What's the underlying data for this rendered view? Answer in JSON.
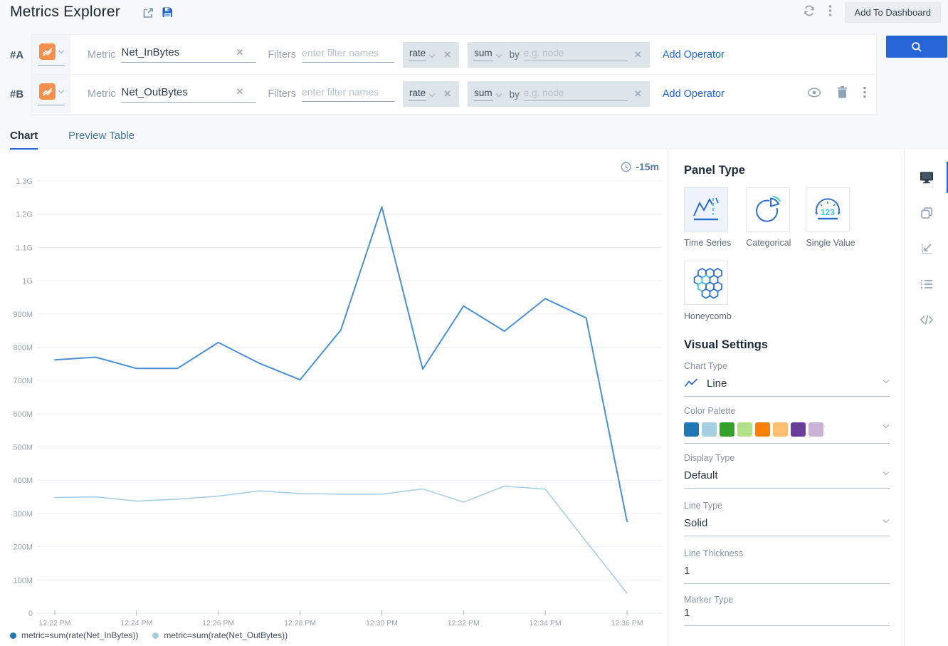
{
  "header": {
    "title": "Metrics Explorer",
    "add_to_dashboard_label": "Add To Dashboard"
  },
  "queries": {
    "labels": {
      "metric": "Metric",
      "filters": "Filters",
      "filters_placeholder": "enter filter names",
      "by": "by",
      "by_placeholder": "e.g. node",
      "add_operator": "Add Operator",
      "clear": "✕"
    },
    "rows": [
      {
        "id": "#A",
        "metric_value": "Net_InBytes",
        "operator1": "rate",
        "operator2": "sum"
      },
      {
        "id": "#B",
        "metric_value": "Net_OutBytes",
        "operator1": "rate",
        "operator2": "sum"
      }
    ]
  },
  "tabs": {
    "chart": "Chart",
    "preview_table": "Preview Table"
  },
  "chart": {
    "time_range_label": "-15m"
  },
  "chart_data": {
    "type": "line",
    "title": "",
    "xlabel": "",
    "ylabel": "",
    "x": [
      "12:22 PM",
      "12:23 PM",
      "12:24 PM",
      "12:25 PM",
      "12:26 PM",
      "12:27 PM",
      "12:28 PM",
      "12:29 PM",
      "12:30 PM",
      "12:31 PM",
      "12:32 PM",
      "12:33 PM",
      "12:34 PM",
      "12:35 PM",
      "12:36 PM"
    ],
    "x_tick_labels": [
      "12:22 PM",
      "12:24 PM",
      "12:26 PM",
      "12:28 PM",
      "12:30 PM",
      "12:32 PM",
      "12:34 PM",
      "12:36 PM"
    ],
    "y_tick_labels": [
      "1.3G",
      "1.2G",
      "1.1G",
      "1G",
      "900M",
      "800M",
      "700M",
      "600M",
      "500M",
      "400M",
      "300M",
      "200M",
      "100M",
      "0"
    ],
    "y_unit": "bytes/sec (rate)",
    "ylim_millions": [
      0,
      1300
    ],
    "grid": true,
    "legend_position": "bottom-left",
    "series": [
      {
        "name": "metric=sum(rate(Net_InBytes))",
        "color": "#4a90d5",
        "legend_color": "#1f78b4",
        "width": 2,
        "values_millions": [
          762,
          770,
          736,
          736,
          814,
          752,
          702,
          852,
          1222,
          734,
          924,
          848,
          946,
          888,
          276
        ]
      },
      {
        "name": "metric=sum(rate(Net_OutBytes))",
        "color": "#a8cfe8",
        "legend_color": "#a6cee3",
        "width": 1.6,
        "values_millions": [
          348,
          350,
          337,
          343,
          352,
          368,
          360,
          358,
          358,
          374,
          334,
          382,
          373,
          216,
          60
        ]
      }
    ]
  },
  "panel": {
    "panel_type_title": "Panel Type",
    "panel_types": [
      "Time Series",
      "Categorical",
      "Single Value",
      "Honeycomb"
    ],
    "selected_panel_type": "Time Series",
    "visual_settings_title": "Visual Settings",
    "chart_type": {
      "label": "Chart Type",
      "value": "Line"
    },
    "color_palette": {
      "label": "Color Palette",
      "swatches": [
        "#1f78b4",
        "#a6cee3",
        "#33a02c",
        "#b2df8a",
        "#ff7f00",
        "#fdbf6f",
        "#6a3d9a",
        "#cab2d6"
      ]
    },
    "display_type": {
      "label": "Display Type",
      "value": "Default"
    },
    "line_type": {
      "label": "Line Type",
      "value": "Solid"
    },
    "line_thickness": {
      "label": "Line Thickness",
      "value": "1"
    },
    "marker_type": {
      "label": "Marker Type",
      "value": "1"
    }
  },
  "colors": {
    "accent_blue": "#2565d6",
    "link_blue": "#2064d4",
    "metric_icon_orange": "#f68f4b",
    "icon_teal": "#3ec6d8",
    "icon_blue": "#2b6ed0"
  }
}
